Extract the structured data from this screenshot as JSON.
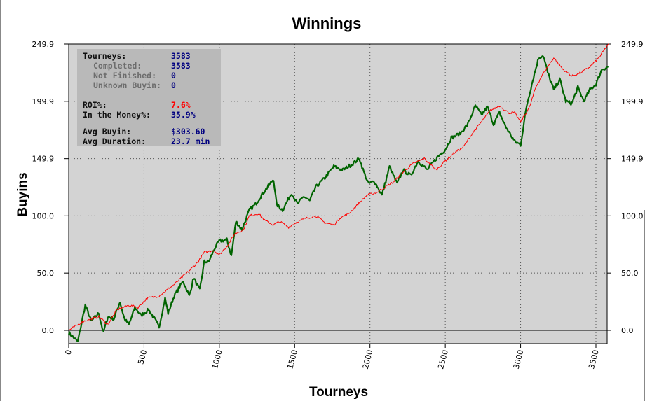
{
  "chart_data": {
    "type": "line",
    "title": "Winnings",
    "xlabel": "Tourneys",
    "ylabel": "Buyins",
    "xlim": [
      0,
      3583
    ],
    "ylim": [
      -6,
      249.9
    ],
    "x_ticks": [
      0,
      500,
      1000,
      1500,
      2000,
      2500,
      3000,
      3500
    ],
    "y_ticks": [
      0.0,
      50.0,
      100.0,
      149.9,
      199.9,
      249.9
    ],
    "y_tick_labels": [
      "0.0",
      "50.0",
      "100.0",
      "149.9",
      "199.9",
      "249.9"
    ],
    "grid": true,
    "background": "#d3d3d3",
    "series": [
      {
        "color": "#006400",
        "x": [
          0,
          60,
          110,
          150,
          200,
          230,
          260,
          300,
          340,
          370,
          400,
          440,
          480,
          530,
          570,
          600,
          640,
          660,
          700,
          760,
          800,
          830,
          870,
          900,
          930,
          970,
          1000,
          1050,
          1080,
          1110,
          1150,
          1200,
          1240,
          1280,
          1320,
          1360,
          1380,
          1420,
          1480,
          1520,
          1560,
          1600,
          1640,
          1700,
          1760,
          1820,
          1880,
          1930,
          1960,
          1990,
          2030,
          2080,
          2130,
          2180,
          2220,
          2270,
          2320,
          2380,
          2440,
          2500,
          2540,
          2600,
          2650,
          2700,
          2740,
          2780,
          2820,
          2860,
          2900,
          2960,
          3000,
          3040,
          3080,
          3120,
          3150,
          3180,
          3220,
          3260,
          3300,
          3340,
          3380,
          3420,
          3460,
          3500,
          3540,
          3583
        ],
        "y": [
          -2,
          -10,
          22,
          8,
          15,
          -2,
          12,
          10,
          25,
          10,
          5,
          20,
          13,
          18,
          10,
          3,
          28,
          15,
          30,
          43,
          30,
          46,
          35,
          60,
          60,
          72,
          78,
          79,
          65,
          95,
          88,
          105,
          110,
          118,
          125,
          132,
          110,
          105,
          120,
          110,
          117,
          113,
          125,
          133,
          143,
          140,
          145,
          150,
          138,
          128,
          130,
          118,
          143,
          128,
          140,
          135,
          148,
          140,
          150,
          158,
          168,
          172,
          180,
          196,
          188,
          195,
          180,
          190,
          178,
          165,
          162,
          196,
          218,
          238,
          240,
          225,
          210,
          219,
          200,
          198,
          212,
          200,
          210,
          215,
          228,
          230
        ]
      },
      {
        "color": "#ff0000",
        "x": [
          0,
          100,
          200,
          260,
          320,
          400,
          460,
          520,
          600,
          700,
          800,
          860,
          900,
          960,
          1000,
          1060,
          1100,
          1160,
          1200,
          1260,
          1300,
          1360,
          1400,
          1460,
          1520,
          1580,
          1640,
          1700,
          1760,
          1800,
          1860,
          1920,
          1980,
          2040,
          2100,
          2160,
          2220,
          2280,
          2360,
          2440,
          2500,
          2560,
          2620,
          2680,
          2740,
          2800,
          2860,
          2920,
          2960,
          3000,
          3060,
          3100,
          3140,
          3180,
          3220,
          3280,
          3340,
          3400,
          3460,
          3520,
          3583
        ],
        "y": [
          0,
          8,
          12,
          5,
          18,
          22,
          20,
          28,
          30,
          40,
          52,
          60,
          68,
          70,
          66,
          75,
          84,
          88,
          100,
          102,
          96,
          92,
          95,
          90,
          95,
          98,
          100,
          94,
          92,
          98,
          102,
          110,
          118,
          120,
          125,
          130,
          138,
          145,
          150,
          140,
          148,
          155,
          160,
          172,
          182,
          192,
          196,
          190,
          190,
          182,
          195,
          212,
          222,
          230,
          238,
          228,
          222,
          225,
          230,
          238,
          250
        ]
      }
    ],
    "stats": {
      "tourneys_label": "Tourneys:",
      "tourneys_value": "3583",
      "completed_label": "Completed:",
      "completed_value": "3583",
      "not_finished_label": "Not Finished:",
      "not_finished_value": "0",
      "unknown_buyin_label": "Unknown Buyin:",
      "unknown_buyin_value": "0",
      "roi_label": "ROI%:",
      "roi_value": "7.6%",
      "itm_label": "In the Money%:",
      "itm_value": "35.9%",
      "avg_buyin_label": "Avg Buyin:",
      "avg_buyin_value": "$303.60",
      "avg_duration_label": "Avg Duration:",
      "avg_duration_value": "23.7 min"
    }
  }
}
